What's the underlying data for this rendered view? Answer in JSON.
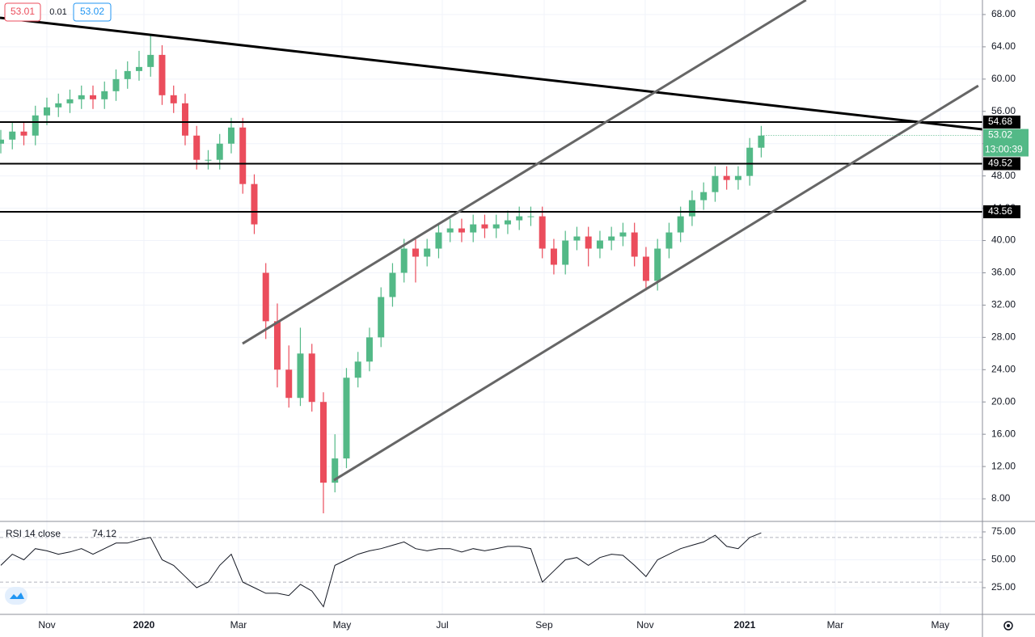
{
  "chart_data": [
    {
      "type": "candlestick",
      "x": [
        -4,
        -3,
        -2,
        -1,
        0,
        1,
        2,
        3,
        4,
        5,
        6,
        7,
        8,
        9,
        10,
        11,
        12,
        13,
        14,
        15,
        16,
        17,
        18,
        19,
        20,
        21,
        22,
        23,
        24,
        25,
        26,
        27,
        28,
        29,
        30,
        31,
        32,
        33,
        34,
        35,
        36,
        37,
        38,
        39,
        40,
        41,
        42,
        43,
        44,
        45,
        46,
        47,
        48,
        49,
        50,
        51,
        52,
        53,
        54,
        55,
        56,
        57,
        58,
        59,
        60,
        61,
        62
      ],
      "open": [
        52,
        52.5,
        53.5,
        53,
        55.5,
        56.5,
        57,
        57.5,
        58,
        57.5,
        58.5,
        60,
        61,
        61.5,
        63,
        58,
        57,
        53,
        50,
        50,
        52,
        54,
        47,
        36,
        30,
        24,
        20.5,
        26,
        20,
        10,
        13,
        23,
        25,
        28,
        33,
        36,
        39,
        38,
        39,
        41,
        41.5,
        41,
        42,
        41.5,
        42,
        42.5,
        43,
        43,
        39,
        37,
        40,
        40.5,
        39,
        40,
        40.5,
        41,
        38,
        35,
        39,
        41,
        43,
        45,
        46,
        48,
        47.5,
        48,
        51.5
      ],
      "high": [
        53.7,
        54.7,
        54.7,
        56.7,
        57.7,
        58.2,
        58.7,
        59.2,
        59.2,
        59.7,
        61.2,
        62.2,
        63.5,
        65.5,
        64.2,
        59.2,
        58.2,
        54.2,
        51.2,
        53.2,
        55.2,
        55.2,
        48.2,
        37.2,
        32.2,
        27,
        29.2,
        27.2,
        21.2,
        16,
        24.2,
        26.2,
        29.2,
        34.2,
        37.2,
        40.2,
        40.2,
        40.2,
        42.2,
        42.7,
        42.7,
        43.2,
        43.2,
        43.2,
        43.7,
        44.2,
        44.2,
        44.2,
        40.2,
        41.2,
        41.7,
        41.7,
        41.2,
        41.7,
        42.2,
        42.2,
        39.2,
        40.2,
        42.2,
        44.2,
        46.2,
        47.2,
        49.2,
        49.2,
        49.2,
        52.7,
        54.2
      ],
      "low": [
        50.8,
        51.3,
        51.8,
        51.8,
        54.3,
        55.3,
        55.8,
        56.3,
        56.3,
        56.3,
        57.3,
        58.8,
        59.8,
        60.3,
        56.8,
        55.8,
        51.8,
        48.8,
        48.8,
        48.8,
        50.8,
        45.8,
        40.8,
        27.8,
        21.8,
        19.3,
        19.5,
        18.8,
        6.2,
        8.8,
        11.8,
        21.8,
        23.8,
        26.8,
        31.8,
        34.8,
        34.8,
        36.8,
        37.8,
        39.8,
        39.8,
        39.8,
        40.3,
        40.3,
        40.8,
        41.3,
        41.8,
        37.8,
        35.8,
        35.8,
        38.8,
        36.8,
        37.8,
        38.8,
        39.3,
        36.8,
        33.8,
        33.8,
        37.8,
        39.8,
        41.8,
        43.8,
        44.8,
        46.3,
        46.3,
        46.8,
        50.3
      ],
      "close": [
        52.5,
        53.5,
        53,
        55.5,
        56.5,
        57,
        57.5,
        58,
        57.5,
        58.5,
        60,
        61,
        61.5,
        63,
        58,
        57,
        53,
        50,
        50,
        52,
        54,
        47,
        42,
        30,
        24,
        20.5,
        26,
        20,
        10,
        13,
        23,
        25,
        28,
        33,
        36,
        39,
        38,
        39,
        41,
        41.5,
        41,
        42,
        41.5,
        42,
        42.5,
        43,
        43,
        39,
        37,
        40,
        40.5,
        39,
        40,
        40.5,
        41,
        38,
        35,
        39,
        41,
        43,
        45,
        46,
        48,
        47.5,
        48,
        51.5,
        53
      ],
      "up_color": "#53b987",
      "down_color": "#eb4d5c",
      "xlim": [
        -4.07,
        81.2
      ],
      "xticks": [
        {
          "value": 0,
          "label": "Nov"
        },
        {
          "value": 8.42,
          "label": "2020"
        },
        {
          "value": 16.63,
          "label": "Mar"
        },
        {
          "value": 25.61,
          "label": "May"
        },
        {
          "value": 34.32,
          "label": "Jul"
        },
        {
          "value": 43.16,
          "label": "Sep"
        },
        {
          "value": 51.93,
          "label": "Nov"
        },
        {
          "value": 60.56,
          "label": "2021"
        },
        {
          "value": 68.42,
          "label": "Mar"
        },
        {
          "value": 77.54,
          "label": "May"
        }
      ],
      "ylim": [
        5.2,
        69.8
      ],
      "yticks": [
        {
          "value": 8,
          "label": "8.00"
        },
        {
          "value": 12,
          "label": "12.00"
        },
        {
          "value": 16,
          "label": "16.00"
        },
        {
          "value": 20,
          "label": "20.00"
        },
        {
          "value": 24,
          "label": "24.00"
        },
        {
          "value": 28,
          "label": "28.00"
        },
        {
          "value": 32,
          "label": "32.00"
        },
        {
          "value": 36,
          "label": "36.00"
        },
        {
          "value": 40,
          "label": "40.00"
        },
        {
          "value": 44,
          "label": "44.00"
        },
        {
          "value": 48,
          "label": "48.00"
        },
        {
          "value": 52,
          "label": "52.00"
        },
        {
          "value": 56,
          "label": "56.00"
        },
        {
          "value": 60,
          "label": "60.00"
        },
        {
          "value": 64,
          "label": "64.00"
        },
        {
          "value": 68,
          "label": "68.00"
        }
      ],
      "grid": true,
      "levels": [
        54.68,
        49.52,
        43.56
      ],
      "trendlines": [
        {
          "x": [
            -4.07,
            81.2
          ],
          "y": [
            67.6,
            53.78
          ]
        },
        {
          "x": [
            16.98,
            65.89
          ],
          "y": [
            27.23,
            69.8
          ]
        },
        {
          "x": [
            24.91,
            80.84
          ],
          "y": [
            10.3,
            59.18
          ]
        }
      ],
      "last_price": 53.02,
      "countdown": "13:00:39",
      "bid": 53.01,
      "spread": 0.01,
      "ask": 53.02
    },
    {
      "type": "line",
      "title": "RSI 14 close",
      "last_value": 74.12,
      "color": "#131722",
      "x": [
        -4,
        -3,
        -2,
        -1,
        0,
        1,
        2,
        3,
        4,
        5,
        6,
        7,
        8,
        9,
        10,
        11,
        12,
        13,
        14,
        15,
        16,
        17,
        18,
        19,
        20,
        21,
        22,
        23,
        24,
        25,
        26,
        27,
        28,
        29,
        30,
        31,
        32,
        33,
        34,
        35,
        36,
        37,
        38,
        39,
        40,
        41,
        42,
        43,
        44,
        45,
        46,
        47,
        48,
        49,
        50,
        51,
        52,
        53,
        54,
        55,
        56,
        57,
        58,
        59,
        60,
        61,
        62
      ],
      "values": [
        45,
        55,
        50,
        60,
        58,
        55,
        57,
        60,
        55,
        60,
        65,
        65,
        68,
        70,
        50,
        45,
        35,
        25,
        30,
        45,
        55,
        30,
        25,
        20,
        20,
        18,
        28,
        22,
        8,
        45,
        50,
        55,
        58,
        60,
        63,
        66,
        60,
        58,
        60,
        60,
        57,
        60,
        58,
        60,
        62,
        62,
        60,
        30,
        40,
        50,
        52,
        45,
        52,
        55,
        54,
        45,
        35,
        50,
        55,
        60,
        63,
        66,
        72,
        62,
        60,
        70,
        74.12
      ],
      "ylim": [
        1.1,
        84.4
      ],
      "yticks": [
        {
          "value": 25,
          "label": "25.00"
        },
        {
          "value": 50,
          "label": "50.00"
        },
        {
          "value": 75,
          "label": "75.00"
        }
      ],
      "bands": [
        30,
        70
      ]
    }
  ]
}
